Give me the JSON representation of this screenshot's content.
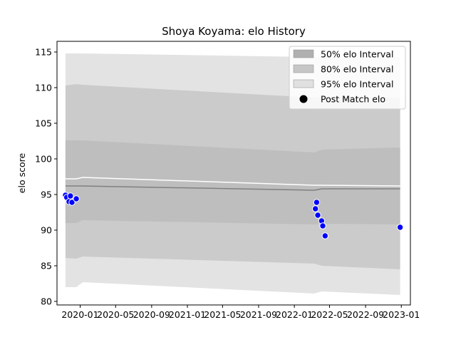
{
  "chart_data": {
    "type": "area",
    "title": "Shoya Koyama: elo History",
    "xlabel": "",
    "ylabel": "elo score",
    "xlim": [
      "2019-10-14",
      "2023-02-01"
    ],
    "ylim": [
      79.5,
      116.5
    ],
    "yticks": [
      80,
      85,
      90,
      95,
      100,
      105,
      110,
      115
    ],
    "xticks": [
      {
        "date": "2020-01-01",
        "label": "2020-01"
      },
      {
        "date": "2020-05-01",
        "label": "2020-05"
      },
      {
        "date": "2020-09-01",
        "label": "2020-09"
      },
      {
        "date": "2021-01-01",
        "label": "2021-01"
      },
      {
        "date": "2021-05-01",
        "label": "2021-05"
      },
      {
        "date": "2021-09-01",
        "label": "2021-09"
      },
      {
        "date": "2022-01-01",
        "label": "2022-01"
      },
      {
        "date": "2022-05-01",
        "label": "2022-05"
      },
      {
        "date": "2022-09-01",
        "label": "2022-09"
      },
      {
        "date": "2023-01-01",
        "label": "2023-01"
      }
    ],
    "band_dates": [
      "2019-11-12",
      "2019-12-19",
      "2020-01-10",
      "2022-03-10",
      "2022-04-05",
      "2022-12-28"
    ],
    "series": [
      {
        "name": "95% elo Interval",
        "color": "#e3e3e3",
        "lower": [
          82.0,
          82.0,
          82.7,
          81.1,
          81.4,
          80.9
        ],
        "upper": [
          114.8,
          114.8,
          114.8,
          114.3,
          114.3,
          114.3
        ]
      },
      {
        "name": "80% elo Interval",
        "color": "#cbcbcb",
        "lower": [
          86.1,
          86.0,
          86.3,
          85.3,
          85.0,
          84.5
        ],
        "upper": [
          110.3,
          110.5,
          110.4,
          108.6,
          108.6,
          108.6
        ]
      },
      {
        "name": "50% elo Interval",
        "color": "#bebebe",
        "lower": [
          91.0,
          91.0,
          91.4,
          90.8,
          90.9,
          90.8
        ],
        "upper": [
          102.6,
          102.6,
          102.6,
          100.9,
          101.3,
          101.6
        ]
      }
    ],
    "mean_line": {
      "color": "#808080",
      "values": [
        96.2,
        96.2,
        96.2,
        95.6,
        95.8,
        95.8
      ]
    },
    "upper_line": {
      "color": "#ffffff",
      "values": [
        97.2,
        97.2,
        97.4,
        96.3,
        96.3,
        96.2
      ]
    },
    "points": {
      "name": "Post Match elo",
      "color": "#0000ff",
      "data": [
        {
          "date": "2019-11-12",
          "elo": 94.9
        },
        {
          "date": "2019-11-16",
          "elo": 94.6
        },
        {
          "date": "2019-11-24",
          "elo": 94.0
        },
        {
          "date": "2019-11-29",
          "elo": 94.8
        },
        {
          "date": "2019-12-04",
          "elo": 93.9
        },
        {
          "date": "2019-12-19",
          "elo": 94.4
        },
        {
          "date": "2022-03-14",
          "elo": 93.0
        },
        {
          "date": "2022-03-18",
          "elo": 93.9
        },
        {
          "date": "2022-03-22",
          "elo": 92.1
        },
        {
          "date": "2022-04-04",
          "elo": 91.3
        },
        {
          "date": "2022-04-08",
          "elo": 90.6
        },
        {
          "date": "2022-04-16",
          "elo": 89.2
        },
        {
          "date": "2022-12-28",
          "elo": 90.4
        }
      ]
    },
    "legend": {
      "placement": "top-right",
      "entries": [
        {
          "label": "50% elo Interval",
          "kind": "patch",
          "color": "#b0b0b0"
        },
        {
          "label": "80% elo Interval",
          "kind": "patch",
          "color": "#c6c6c6"
        },
        {
          "label": "95% elo Interval",
          "kind": "patch",
          "color": "#e0e0e0"
        },
        {
          "label": "Post Match elo",
          "kind": "marker",
          "color": "#000000"
        }
      ]
    }
  }
}
